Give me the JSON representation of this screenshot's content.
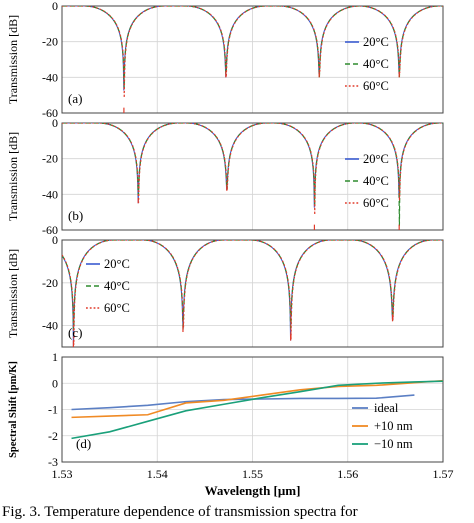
{
  "caption": "Fig. 3. Temperature dependence of transmission spectra for",
  "colors": {
    "blue": "#3a5bd0",
    "green": "#2e8b2e",
    "red": "#e03a2a",
    "orange": "#f08a24",
    "teal": "#1aa07a",
    "steel": "#5b7fc4"
  },
  "chart_data": [
    {
      "type": "line",
      "panel_label": "(a)",
      "ylabel": "Transmission [dB]",
      "ylim": [
        -60,
        0
      ],
      "yticks": [
        "0",
        "-20",
        "-40",
        "-60"
      ],
      "xlim": [
        1.53,
        1.57
      ],
      "legend_position": "right",
      "series": [
        {
          "name": "20°C",
          "style": "solid",
          "color": "#3a5bd0"
        },
        {
          "name": "40°C",
          "style": "dashed",
          "color": "#2e8b2e"
        },
        {
          "name": "60°C",
          "style": "dotted",
          "color": "#e03a2a"
        }
      ],
      "dips": [
        {
          "wavelength": 1.5365,
          "depth": -60
        },
        {
          "wavelength": 1.5472,
          "depth": -40
        },
        {
          "wavelength": 1.557,
          "depth": -40
        },
        {
          "wavelength": 1.5654,
          "depth": -40
        }
      ]
    },
    {
      "type": "line",
      "panel_label": "(b)",
      "ylabel": "Transmission [dB]",
      "ylim": [
        -60,
        0
      ],
      "yticks": [
        "0",
        "-20",
        "-40",
        "-60"
      ],
      "xlim": [
        1.53,
        1.57
      ],
      "legend_position": "right",
      "series": [
        {
          "name": "20°C",
          "style": "solid",
          "color": "#3a5bd0"
        },
        {
          "name": "40°C",
          "style": "dashed",
          "color": "#2e8b2e"
        },
        {
          "name": "60°C",
          "style": "dotted",
          "color": "#e03a2a"
        }
      ],
      "dips": [
        {
          "wavelength": 1.538,
          "depth": -45
        },
        {
          "wavelength": 1.5473,
          "depth": -38
        },
        {
          "wavelength": 1.5565,
          "depth": -60
        },
        {
          "wavelength": 1.5654,
          "depth": -60
        }
      ]
    },
    {
      "type": "line",
      "panel_label": "(c)",
      "ylabel": "Transmission [dB]",
      "ylim": [
        -50,
        0
      ],
      "yticks": [
        "0",
        "-20",
        "-40"
      ],
      "xlim": [
        1.53,
        1.57
      ],
      "legend_position": "left",
      "series": [
        {
          "name": "20°C",
          "style": "solid",
          "color": "#3a5bd0"
        },
        {
          "name": "40°C",
          "style": "dashed",
          "color": "#2e8b2e"
        },
        {
          "name": "60°C",
          "style": "dotted",
          "color": "#e03a2a"
        }
      ],
      "dips": [
        {
          "wavelength": 1.5312,
          "depth": -50
        },
        {
          "wavelength": 1.5427,
          "depth": -43
        },
        {
          "wavelength": 1.554,
          "depth": -47
        },
        {
          "wavelength": 1.5647,
          "depth": -38
        }
      ]
    },
    {
      "type": "line",
      "panel_label": "(d)",
      "ylabel": "Spectral Shift [pm/K]",
      "xlabel": "Wavelength [μm]",
      "ylim": [
        -3,
        1
      ],
      "yticks": [
        "1",
        "0",
        "-1",
        "-2",
        "-3"
      ],
      "xlim": [
        1.53,
        1.57
      ],
      "xticks": [
        "1.53",
        "1.54",
        "1.55",
        "1.56",
        "1.57"
      ],
      "legend_position": "bottom-right",
      "x": [
        1.531,
        1.535,
        1.539,
        1.543,
        1.547,
        1.551,
        1.555,
        1.559,
        1.563,
        1.567,
        1.57
      ],
      "series": [
        {
          "name": "ideal",
          "color": "#5b7fc4",
          "values": [
            -1.0,
            -0.93,
            -0.84,
            -0.7,
            -0.62,
            -0.6,
            -0.58,
            -0.58,
            -0.57,
            -0.45,
            null
          ]
        },
        {
          "name": "+10 nm",
          "color": "#f08a24",
          "values": [
            -1.3,
            -1.25,
            -1.2,
            -0.75,
            -0.65,
            -0.45,
            -0.25,
            -0.12,
            -0.08,
            0.02,
            0.1
          ]
        },
        {
          "name": "−10 nm",
          "color": "#1aa07a",
          "values": [
            -2.1,
            -1.85,
            -1.45,
            -1.05,
            -0.8,
            -0.55,
            -0.32,
            -0.08,
            0.0,
            0.05,
            0.08
          ]
        }
      ]
    }
  ]
}
